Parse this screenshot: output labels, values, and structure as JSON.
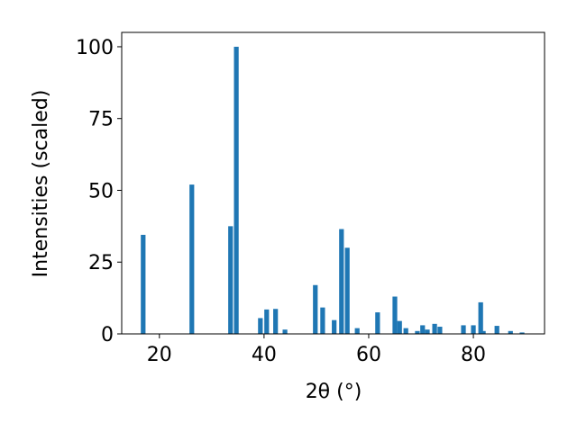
{
  "chart_data": {
    "type": "bar",
    "xlabel": "2θ (°)",
    "ylabel": "Intensities (scaled)",
    "x": [
      16.9,
      26.2,
      33.6,
      34.7,
      39.3,
      40.5,
      42.2,
      44.0,
      49.8,
      51.2,
      53.4,
      54.8,
      55.9,
      57.8,
      61.7,
      65.0,
      65.9,
      67.1,
      69.3,
      70.3,
      71.2,
      72.6,
      73.6,
      78.1,
      80.0,
      81.4,
      81.9,
      84.5,
      87.1,
      89.3
    ],
    "values": [
      34.5,
      52,
      37.5,
      100,
      5.5,
      8.5,
      8.7,
      1.5,
      17,
      9.2,
      4.8,
      36.5,
      30,
      2,
      7.5,
      13,
      4.5,
      2,
      1,
      3,
      1.5,
      3.5,
      2.5,
      3,
      3,
      11,
      1,
      2.8,
      1,
      0.5
    ],
    "color": "#1f77b4",
    "xlim": [
      12.8,
      93.6
    ],
    "ylim": [
      0,
      105
    ],
    "xticks": [
      20,
      40,
      60,
      80
    ],
    "yticks": [
      0,
      25,
      50,
      75,
      100
    ],
    "grid": false
  }
}
